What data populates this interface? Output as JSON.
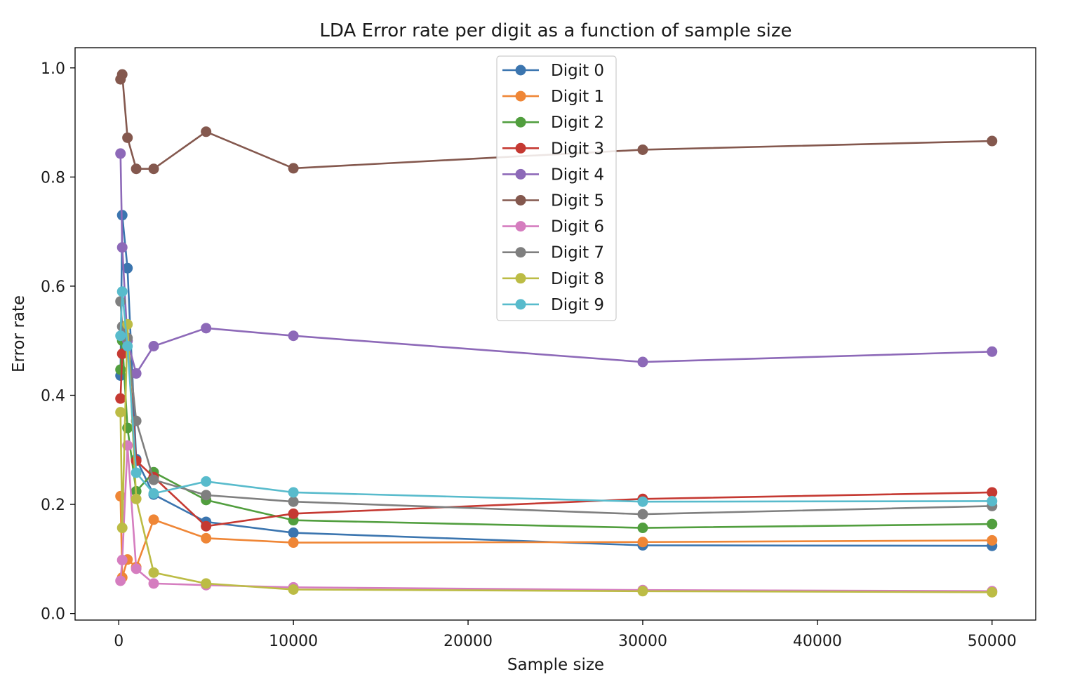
{
  "chart_data": {
    "type": "line",
    "title": "LDA Error rate per digit as a function of sample size",
    "xlabel": "Sample size",
    "ylabel": "Error rate",
    "xlim": [
      -2500,
      52500
    ],
    "ylim": [
      -0.012,
      1.037
    ],
    "x_ticks": [
      0,
      10000,
      20000,
      30000,
      40000,
      50000
    ],
    "x_tick_labels": [
      "0",
      "10000",
      "20000",
      "30000",
      "40000",
      "50000"
    ],
    "y_ticks": [
      0.0,
      0.2,
      0.4,
      0.6,
      0.8,
      1.0
    ],
    "y_tick_labels": [
      "0.0",
      "0.2",
      "0.4",
      "0.6",
      "0.8",
      "1.0"
    ],
    "grid": false,
    "legend_position": "top-center",
    "x": [
      100,
      200,
      500,
      1000,
      2000,
      5000,
      10000,
      30000,
      50000
    ],
    "series": [
      {
        "name": "Digit 0",
        "color": "#3b75af",
        "values": [
          0.436,
          0.73,
          0.633,
          0.283,
          0.218,
          0.168,
          0.148,
          0.125,
          0.124
        ]
      },
      {
        "name": "Digit 1",
        "color": "#ef8636",
        "values": [
          0.215,
          0.066,
          0.099,
          0.085,
          0.172,
          0.138,
          0.13,
          0.131,
          0.134
        ]
      },
      {
        "name": "Digit 2",
        "color": "#519e3e",
        "values": [
          0.447,
          0.5,
          0.34,
          0.224,
          0.259,
          0.208,
          0.171,
          0.157,
          0.164
        ]
      },
      {
        "name": "Digit 3",
        "color": "#c53932",
        "values": [
          0.394,
          0.476,
          0.5,
          0.28,
          0.25,
          0.16,
          0.183,
          0.21,
          0.222
        ]
      },
      {
        "name": "Digit 4",
        "color": "#8d69b8",
        "values": [
          0.843,
          0.671,
          0.5,
          0.44,
          0.49,
          0.523,
          0.509,
          0.461,
          0.48
        ]
      },
      {
        "name": "Digit 5",
        "color": "#84584e",
        "values": [
          0.979,
          0.988,
          0.872,
          0.815,
          0.815,
          0.883,
          0.816,
          0.85,
          0.866
        ]
      },
      {
        "name": "Digit 6",
        "color": "#d57dbf",
        "values": [
          0.06,
          0.098,
          0.308,
          0.082,
          0.055,
          0.052,
          0.048,
          0.043,
          0.041
        ]
      },
      {
        "name": "Digit 7",
        "color": "#7f7f7f",
        "values": [
          0.572,
          0.526,
          0.505,
          0.353,
          0.245,
          0.217,
          0.205,
          0.182,
          0.197
        ]
      },
      {
        "name": "Digit 8",
        "color": "#bcbc45",
        "values": [
          0.369,
          0.157,
          0.53,
          0.21,
          0.075,
          0.055,
          0.044,
          0.041,
          0.039
        ]
      },
      {
        "name": "Digit 9",
        "color": "#58bbcc",
        "values": [
          0.509,
          0.59,
          0.49,
          0.258,
          0.22,
          0.242,
          0.222,
          0.205,
          0.206
        ]
      }
    ]
  }
}
